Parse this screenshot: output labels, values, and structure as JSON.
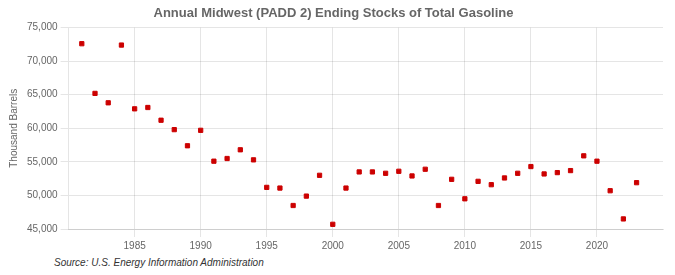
{
  "chart_data": {
    "type": "scatter",
    "title": "Annual Midwest (PADD 2) Ending Stocks of Total Gasoline",
    "ylabel": "Thousand Barrels",
    "annotations": [
      "Source: U.S. Energy Information Administration"
    ],
    "x": [
      1981,
      1982,
      1983,
      1984,
      1985,
      1986,
      1987,
      1988,
      1989,
      1990,
      1991,
      1992,
      1993,
      1994,
      1995,
      1996,
      1997,
      1998,
      1999,
      2000,
      2001,
      2002,
      2003,
      2004,
      2005,
      2006,
      2007,
      2008,
      2009,
      2010,
      2011,
      2012,
      2013,
      2014,
      2015,
      2016,
      2017,
      2018,
      2019,
      2020,
      2021,
      2022,
      2023
    ],
    "values": [
      72600,
      65200,
      63800,
      72400,
      62900,
      63100,
      61200,
      59800,
      57400,
      59700,
      55100,
      55500,
      56800,
      55300,
      51200,
      51100,
      48500,
      49900,
      53000,
      45700,
      51100,
      53500,
      53500,
      53300,
      53600,
      52900,
      53900,
      48500,
      52400,
      49500,
      52100,
      51600,
      52600,
      53300,
      54300,
      53200,
      53400,
      53700,
      55900,
      55100,
      50700,
      46500,
      51900
    ],
    "color": "#cc0000",
    "marker": "square",
    "xlim": [
      1980,
      2025
    ],
    "xticks": [
      1985,
      1990,
      1995,
      2000,
      2005,
      2010,
      2015,
      2020
    ],
    "ylim": [
      45000,
      75000
    ],
    "yticks": [
      {
        "value": 45000,
        "label": "45,000"
      },
      {
        "value": 50000,
        "label": "50,000"
      },
      {
        "value": 55000,
        "label": "55,000"
      },
      {
        "value": 60000,
        "label": "60,000"
      },
      {
        "value": 65000,
        "label": "65,000"
      },
      {
        "value": 70000,
        "label": "70,000"
      },
      {
        "value": 75000,
        "label": "75,000"
      }
    ],
    "grid": true
  }
}
